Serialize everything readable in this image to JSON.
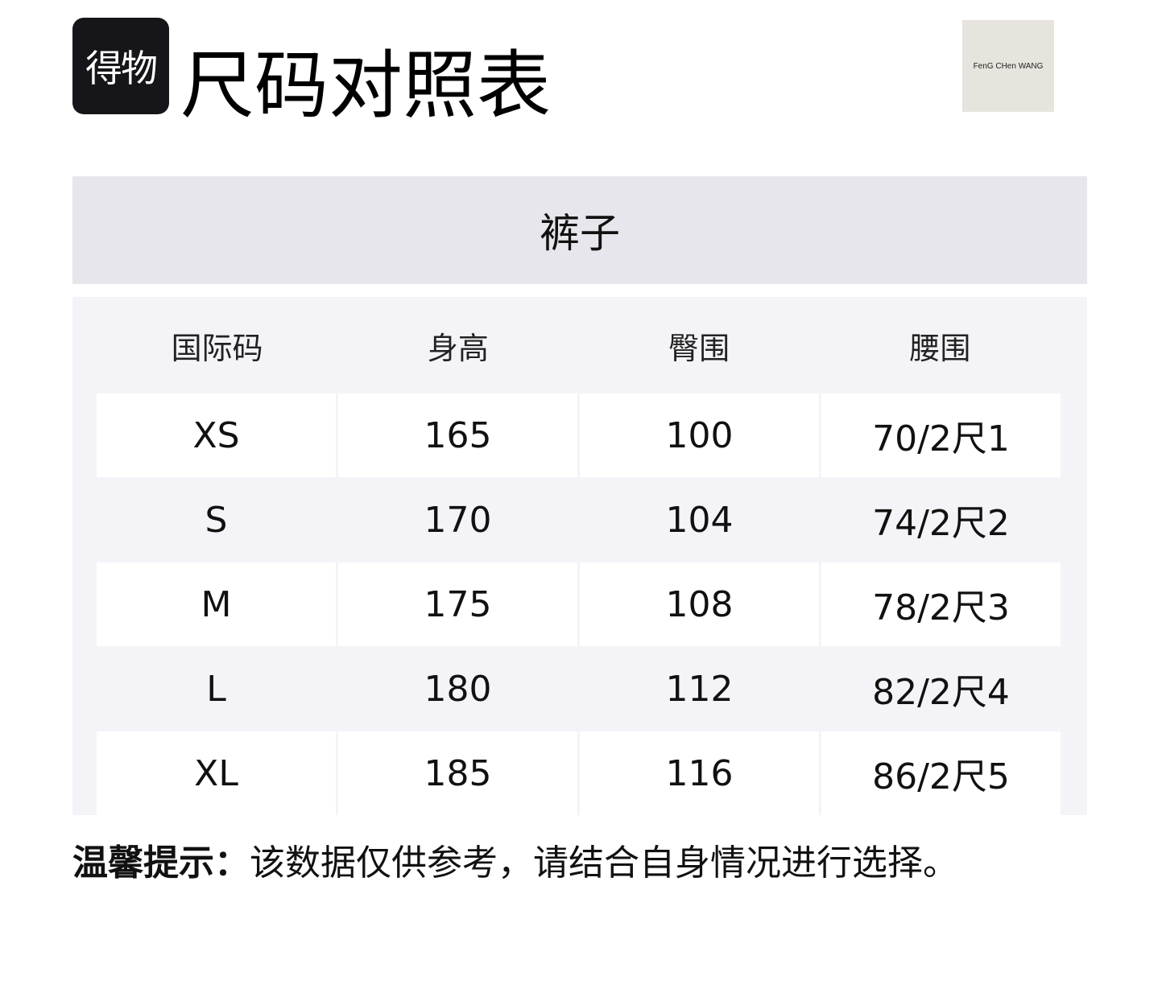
{
  "logo_text": "得物",
  "title": "尺码对照表",
  "brand_logo_text": "FenG CHen WANG",
  "category": "裤子",
  "table": {
    "headers": [
      "国际码",
      "身高",
      "臀围",
      "腰围"
    ],
    "rows": [
      [
        "XS",
        "165",
        "100",
        "70/2尺1"
      ],
      [
        "S",
        "170",
        "104",
        "74/2尺2"
      ],
      [
        "M",
        "175",
        "108",
        "78/2尺3"
      ],
      [
        "L",
        "180",
        "112",
        "82/2尺4"
      ],
      [
        "XL",
        "185",
        "116",
        "86/2尺5"
      ]
    ]
  },
  "tip": {
    "label": "温馨提示：",
    "text": "该数据仅供参考，请结合自身情况进行选择。"
  }
}
